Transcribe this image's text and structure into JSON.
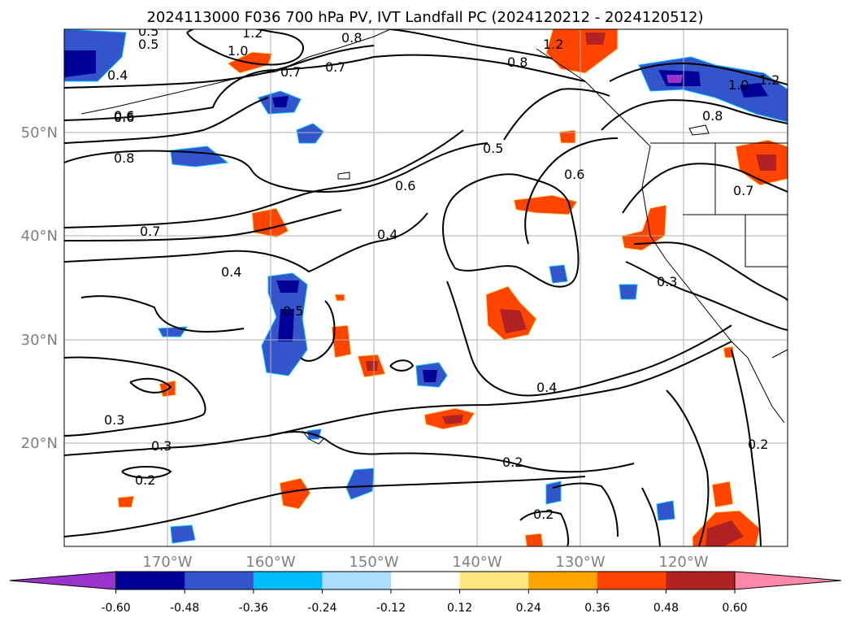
{
  "title": "2024113000 F036 700 hPa PV, IVT Landfall PC (2024120212 - 2024120512)",
  "lat_labels": [
    "50°N",
    "40°N",
    "30°N",
    "20°N"
  ],
  "lon_labels": [
    "170°W",
    "160°W",
    "150°W",
    "140°W",
    "130°W",
    "120°W"
  ],
  "colorbar": {
    "ticks": [
      "-0.60",
      "-0.48",
      "-0.36",
      "-0.24",
      "-0.12",
      "0.12",
      "0.24",
      "0.36",
      "0.48",
      "0.60"
    ],
    "colors": [
      "#9933cc",
      "#000099",
      "#3355cc",
      "#00bbff",
      "#aaddff",
      "#ffffff",
      "#ffe680",
      "#ffa500",
      "#ff4500",
      "#b22222",
      "#ff88aa"
    ]
  },
  "contour_labels": [
    "1.2",
    "1.0",
    "0.8",
    "0.7",
    "0.7",
    "0.6",
    "0.5",
    "0.4",
    "1.2",
    "0.8",
    "0.6",
    "0.4",
    "0.6",
    "0.8",
    "1.2",
    "1.0",
    "0.8",
    "0.7",
    "0.5",
    "0.7",
    "0.6",
    "0.4",
    "0.5",
    "0.3",
    "0.3",
    "0.3",
    "0.2",
    "0.4",
    "0.2",
    "0.2",
    "0.2",
    "0.5"
  ]
}
